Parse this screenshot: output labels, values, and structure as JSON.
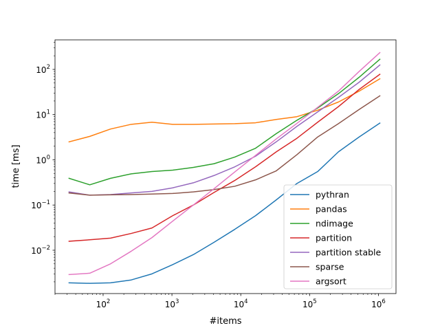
{
  "chart_data": {
    "type": "line",
    "xscale": "log",
    "yscale": "log",
    "xlabel": "#items",
    "ylabel": "time [ms]",
    "xlim": [
      20,
      1800000
    ],
    "ylim": [
      0.0011,
      450
    ],
    "x_ticks": [
      {
        "value": 100,
        "base": "10",
        "exp": "2"
      },
      {
        "value": 1000,
        "base": "10",
        "exp": "3"
      },
      {
        "value": 10000,
        "base": "10",
        "exp": "4"
      },
      {
        "value": 100000,
        "base": "10",
        "exp": "5"
      },
      {
        "value": 1000000,
        "base": "10",
        "exp": "6"
      }
    ],
    "y_ticks": [
      {
        "value": 0.01,
        "base": "10",
        "exp": "−2"
      },
      {
        "value": 0.1,
        "base": "10",
        "exp": "−1"
      },
      {
        "value": 1,
        "base": "10",
        "exp": "0"
      },
      {
        "value": 10,
        "base": "10",
        "exp": "1"
      },
      {
        "value": 100,
        "base": "10",
        "exp": "2"
      }
    ],
    "x": [
      32,
      64,
      128,
      256,
      512,
      1024,
      2048,
      4096,
      8192,
      16384,
      32768,
      65536,
      131072,
      262144,
      524288,
      1048576
    ],
    "series": [
      {
        "name": "pythran",
        "color": "#1f77b4",
        "values": [
          0.0019,
          0.00185,
          0.0019,
          0.0022,
          0.003,
          0.0048,
          0.008,
          0.015,
          0.029,
          0.058,
          0.13,
          0.3,
          0.55,
          1.5,
          3.2,
          6.5
        ]
      },
      {
        "name": "pandas",
        "color": "#ff7f0e",
        "values": [
          2.5,
          3.3,
          4.8,
          6.1,
          6.8,
          6.1,
          6.1,
          6.2,
          6.3,
          6.6,
          7.8,
          9.0,
          12.5,
          19.0,
          33.0,
          62.0
        ]
      },
      {
        "name": "ndimage",
        "color": "#2ca02c",
        "values": [
          0.39,
          0.28,
          0.39,
          0.49,
          0.55,
          0.59,
          0.68,
          0.82,
          1.15,
          1.8,
          3.8,
          7.5,
          14.0,
          29.0,
          67.0,
          168.0
        ]
      },
      {
        "name": "partition",
        "color": "#d62728",
        "values": [
          0.0158,
          0.017,
          0.0185,
          0.0235,
          0.031,
          0.058,
          0.1,
          0.19,
          0.35,
          0.7,
          1.5,
          3.0,
          6.8,
          15.0,
          36.0,
          78.0
        ]
      },
      {
        "name": "partition stable",
        "color": "#9467bd",
        "values": [
          0.195,
          0.165,
          0.17,
          0.185,
          0.2,
          0.24,
          0.31,
          0.45,
          0.7,
          1.2,
          2.5,
          5.5,
          11.5,
          24.0,
          52.0,
          125.0
        ]
      },
      {
        "name": "sparse",
        "color": "#8c564b",
        "values": [
          0.185,
          0.165,
          0.168,
          0.17,
          0.175,
          0.18,
          0.195,
          0.22,
          0.26,
          0.36,
          0.57,
          1.3,
          3.2,
          6.3,
          13.0,
          26.0
        ]
      },
      {
        "name": "argsort",
        "color": "#e377c2",
        "values": [
          0.0029,
          0.0031,
          0.005,
          0.0095,
          0.019,
          0.044,
          0.1,
          0.23,
          0.54,
          1.25,
          2.9,
          6.4,
          14.5,
          33.0,
          90.0,
          235.0
        ]
      }
    ],
    "legend_position": "bottom-right"
  }
}
